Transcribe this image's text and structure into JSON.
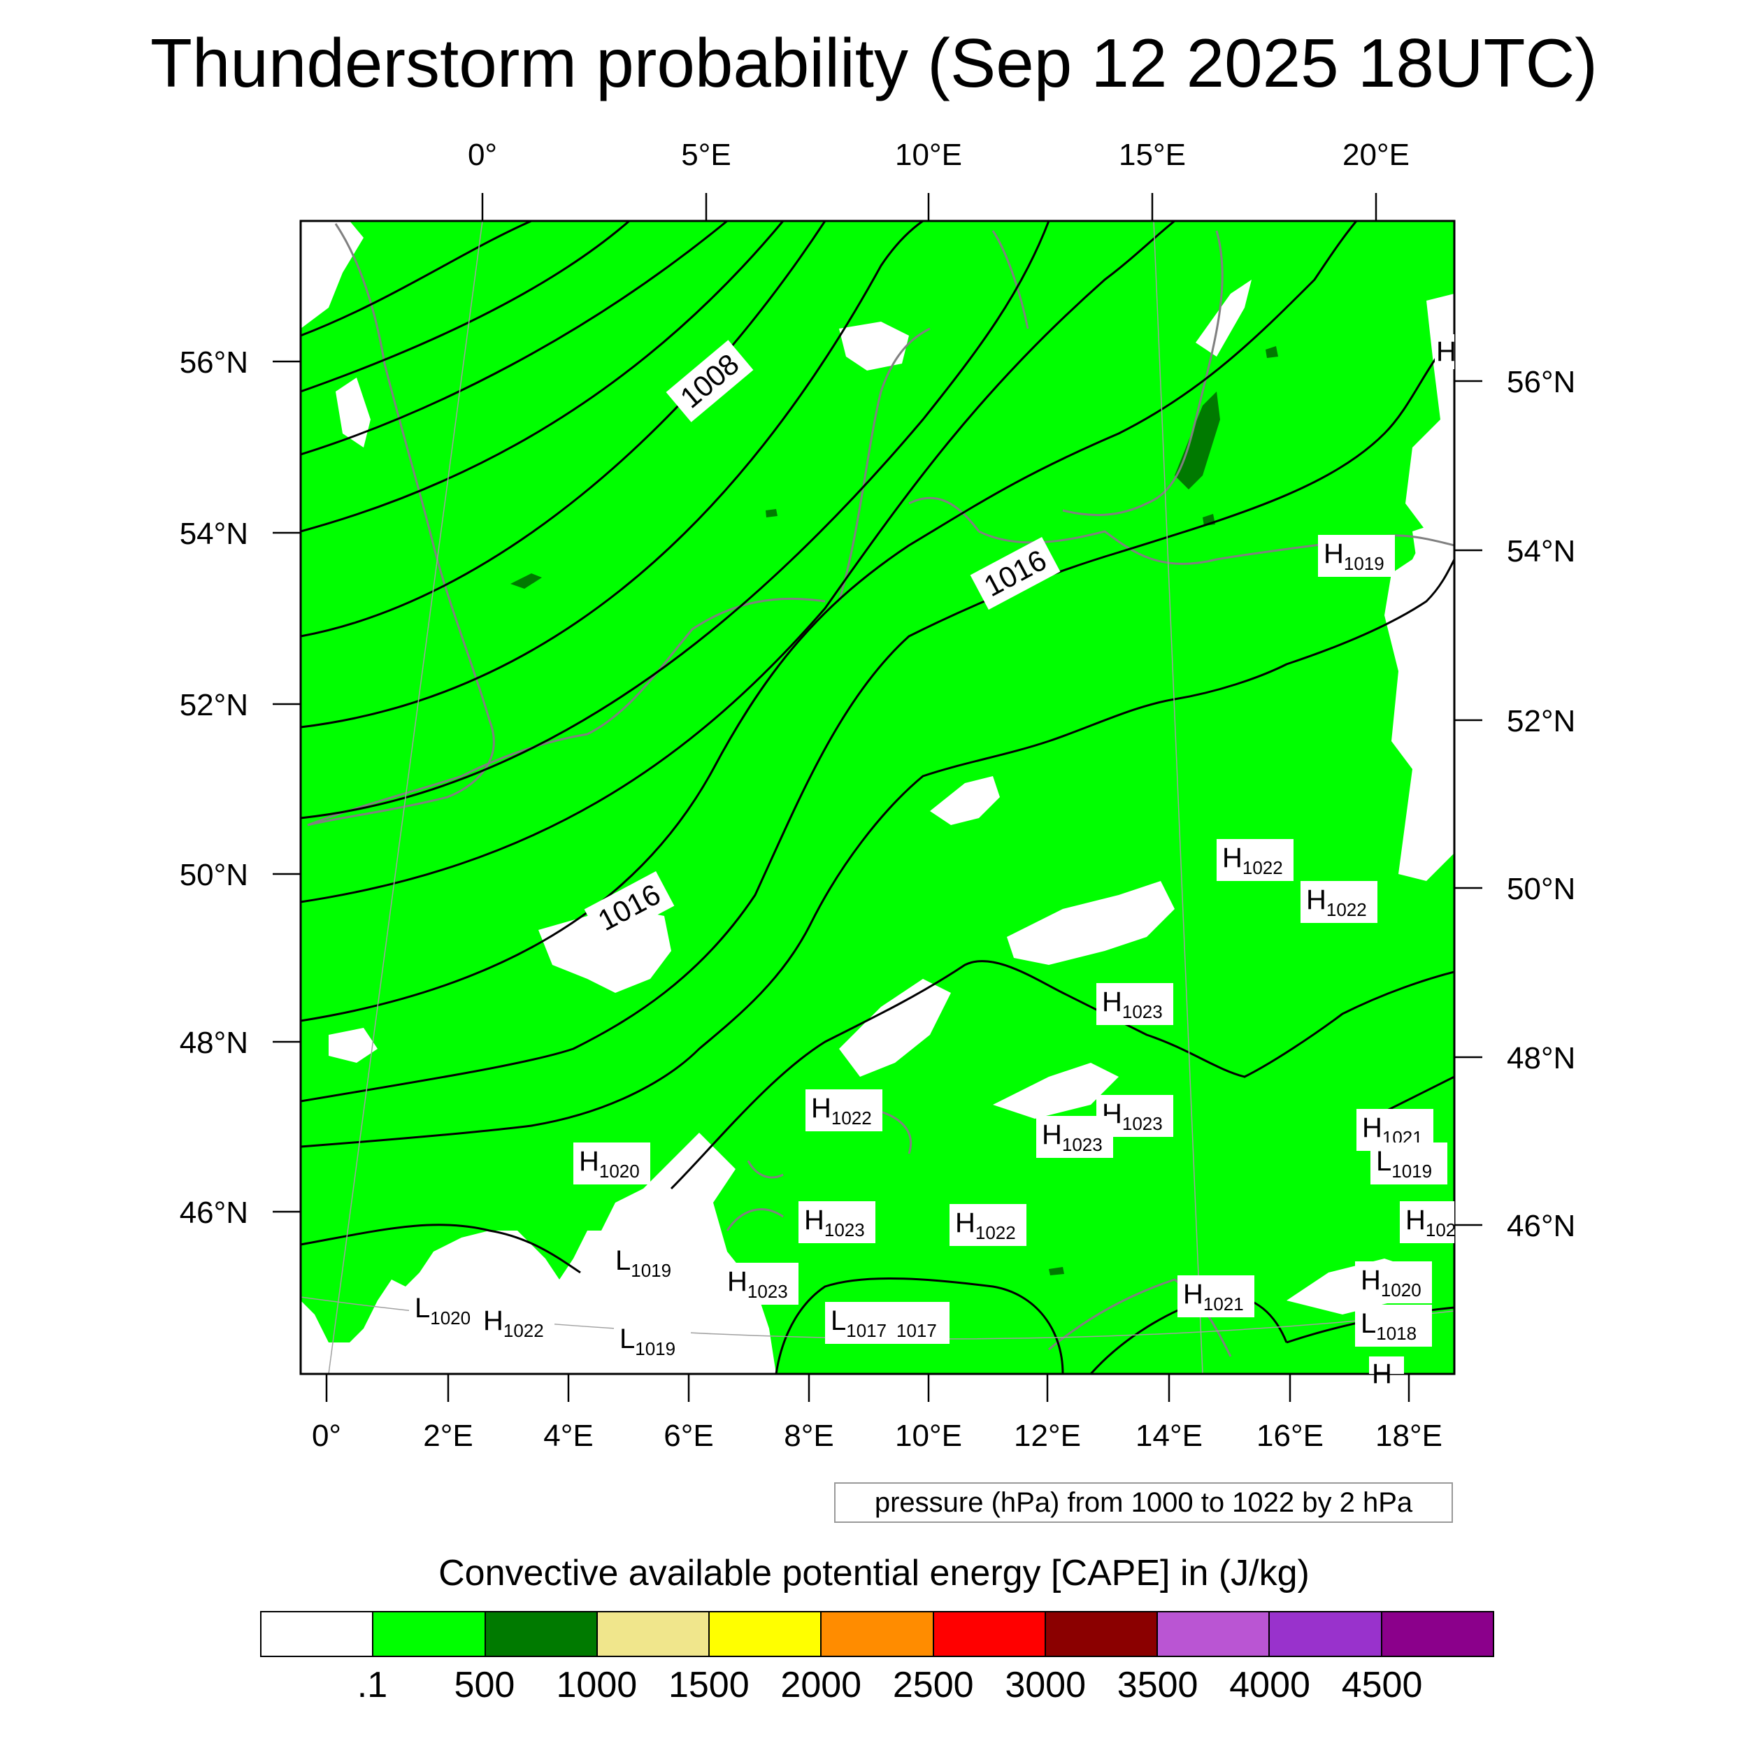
{
  "title": "Thunderstorm probability (Sep 12 2025 18UTC)",
  "map": {
    "region": "Western and Central Europe",
    "top_lon_labels": [
      "0°",
      "5°E",
      "10°E",
      "15°E",
      "20°E"
    ],
    "bottom_lon_labels": [
      "0°",
      "2°E",
      "4°E",
      "6°E",
      "8°E",
      "10°E",
      "12°E",
      "14°E",
      "16°E",
      "18°E"
    ],
    "left_lat_labels": [
      "56°N",
      "54°N",
      "52°N",
      "50°N",
      "48°N",
      "46°N"
    ],
    "right_lat_labels": [
      "56°N",
      "54°N",
      "52°N",
      "50°N",
      "48°N",
      "46°N"
    ],
    "coastline_color": "#808080",
    "isobar_color": "#000000",
    "contour_labels": [
      "1008",
      "1016",
      "1016"
    ],
    "pressure_centers": [
      {
        "letter": "H",
        "value": "1019"
      },
      {
        "letter": "H",
        "value": "1022"
      },
      {
        "letter": "H",
        "value": "1022"
      },
      {
        "letter": "H",
        "value": "1023"
      },
      {
        "letter": "H",
        "value": "1022"
      },
      {
        "letter": "H",
        "value": "1023"
      },
      {
        "letter": "H",
        "value": "1023"
      },
      {
        "letter": "H",
        "value": "1021"
      },
      {
        "letter": "L",
        "value": "1019"
      },
      {
        "letter": "H",
        "value": "1020"
      },
      {
        "letter": "H",
        "value": "1023"
      },
      {
        "letter": "H",
        "value": "1022"
      },
      {
        "letter": "L",
        "value": "1019"
      },
      {
        "letter": "H",
        "value": "1023"
      },
      {
        "letter": "L",
        "value": "1020"
      },
      {
        "letter": "H",
        "value": "1022"
      },
      {
        "letter": "L",
        "value": "1019"
      },
      {
        "letter": "L",
        "value": "1017"
      },
      {
        "letter": "",
        "value": "1017"
      },
      {
        "letter": "H",
        "value": "1021"
      },
      {
        "letter": "H",
        "value": "1020"
      },
      {
        "letter": "L",
        "value": "1018"
      },
      {
        "letter": "H",
        "value": "102"
      },
      {
        "letter": "H",
        "value": ""
      },
      {
        "letter": "H",
        "value": ""
      }
    ]
  },
  "pressure_note": "pressure (hPa) from 1000 to 1022 by 2 hPa",
  "colorbar": {
    "title": "Convective available potential energy [CAPE] in (J/kg)",
    "colors": [
      "#ffffff",
      "#00ff00",
      "#007a00",
      "#f0e68c",
      "#ffff00",
      "#ff8c00",
      "#ff0000",
      "#8b0000",
      "#ba55d3",
      "#9932cc",
      "#8b008b"
    ],
    "labels": [
      ".1",
      "500",
      "1000",
      "1500",
      "2000",
      "2500",
      "3000",
      "3500",
      "4000",
      "4500"
    ]
  }
}
